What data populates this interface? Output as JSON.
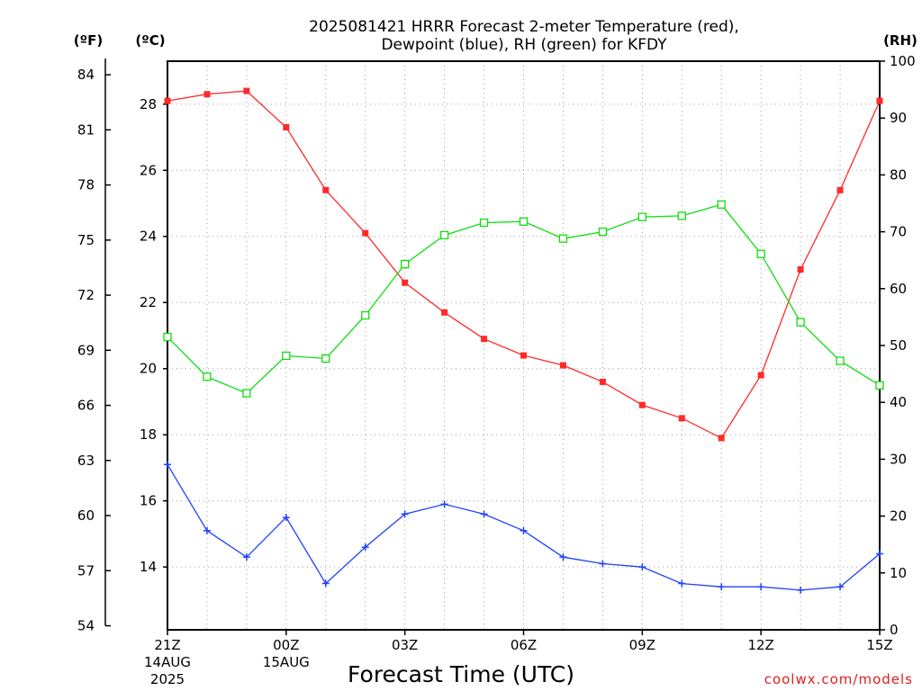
{
  "chart_data": {
    "type": "line",
    "title": "2025081421 HRRR Forecast 2-meter Temperature (red),",
    "subtitle": "Dewpoint (blue), RH (green) for KFDY",
    "xlabel": "Forecast Time (UTC)",
    "credit": "coolwx.com/models",
    "units": {
      "fahrenheit": "(ºF)",
      "celsius": "(ºC)",
      "rh": "(RH)"
    },
    "x_ticks": [
      {
        "hour": 0,
        "label": "21Z",
        "line2": "14AUG",
        "line3": "2025"
      },
      {
        "hour": 3,
        "label": "00Z",
        "line2": "15AUG"
      },
      {
        "hour": 6,
        "label": "03Z"
      },
      {
        "hour": 9,
        "label": "06Z"
      },
      {
        "hour": 12,
        "label": "09Z"
      },
      {
        "hour": 15,
        "label": "12Z"
      },
      {
        "hour": 18,
        "label": "15Z"
      }
    ],
    "xlim": [
      0,
      18
    ],
    "celsius_axis": {
      "ylim": [
        12.1,
        29.3
      ],
      "ticks": [
        "14",
        "16",
        "18",
        "20",
        "22",
        "24",
        "26",
        "28"
      ]
    },
    "fahrenheit_axis": {
      "ticks": [
        "54",
        "57",
        "60",
        "63",
        "66",
        "69",
        "72",
        "75",
        "78",
        "81",
        "84"
      ]
    },
    "rh_axis": {
      "ylim": [
        0,
        100
      ],
      "ticks": [
        "0",
        "10",
        "20",
        "30",
        "40",
        "50",
        "60",
        "70",
        "80",
        "90",
        "100"
      ]
    },
    "grid": true,
    "series": [
      {
        "name": "Temperature",
        "axis": "celsius",
        "color": "#ff2a2a",
        "marker": "filled-square",
        "x": [
          0,
          1,
          2,
          3,
          4,
          5,
          6,
          7,
          8,
          9,
          10,
          11,
          12,
          13,
          14,
          15,
          16,
          17,
          18
        ],
        "values": [
          28.1,
          28.3,
          28.4,
          27.3,
          25.4,
          24.1,
          22.6,
          21.7,
          20.9,
          20.4,
          20.1,
          19.6,
          18.9,
          18.5,
          17.9,
          19.8,
          23.0,
          25.4,
          28.1
        ]
      },
      {
        "name": "Dewpoint",
        "axis": "celsius",
        "color": "#2040ff",
        "marker": "plus",
        "x": [
          0,
          1,
          2,
          3,
          4,
          5,
          6,
          7,
          8,
          9,
          10,
          11,
          12,
          13,
          14,
          15,
          16,
          17,
          18
        ],
        "values": [
          17.1,
          15.1,
          14.3,
          15.5,
          13.5,
          14.6,
          15.6,
          15.9,
          15.6,
          15.1,
          14.3,
          14.1,
          14.0,
          13.5,
          13.4,
          13.4,
          13.3,
          13.4,
          14.4
        ]
      },
      {
        "name": "RH",
        "axis": "rh",
        "color": "#10dd10",
        "marker": "open-square",
        "x": [
          0,
          1,
          2,
          3,
          4,
          5,
          6,
          7,
          8,
          9,
          10,
          11,
          12,
          13,
          14,
          15,
          16,
          17,
          18
        ],
        "values": [
          51.5,
          44.5,
          41.6,
          48.2,
          47.7,
          55.3,
          64.3,
          69.4,
          71.6,
          71.8,
          68.8,
          70.0,
          72.6,
          72.8,
          74.8,
          66.1,
          54.1,
          47.3,
          43.0
        ]
      }
    ]
  }
}
